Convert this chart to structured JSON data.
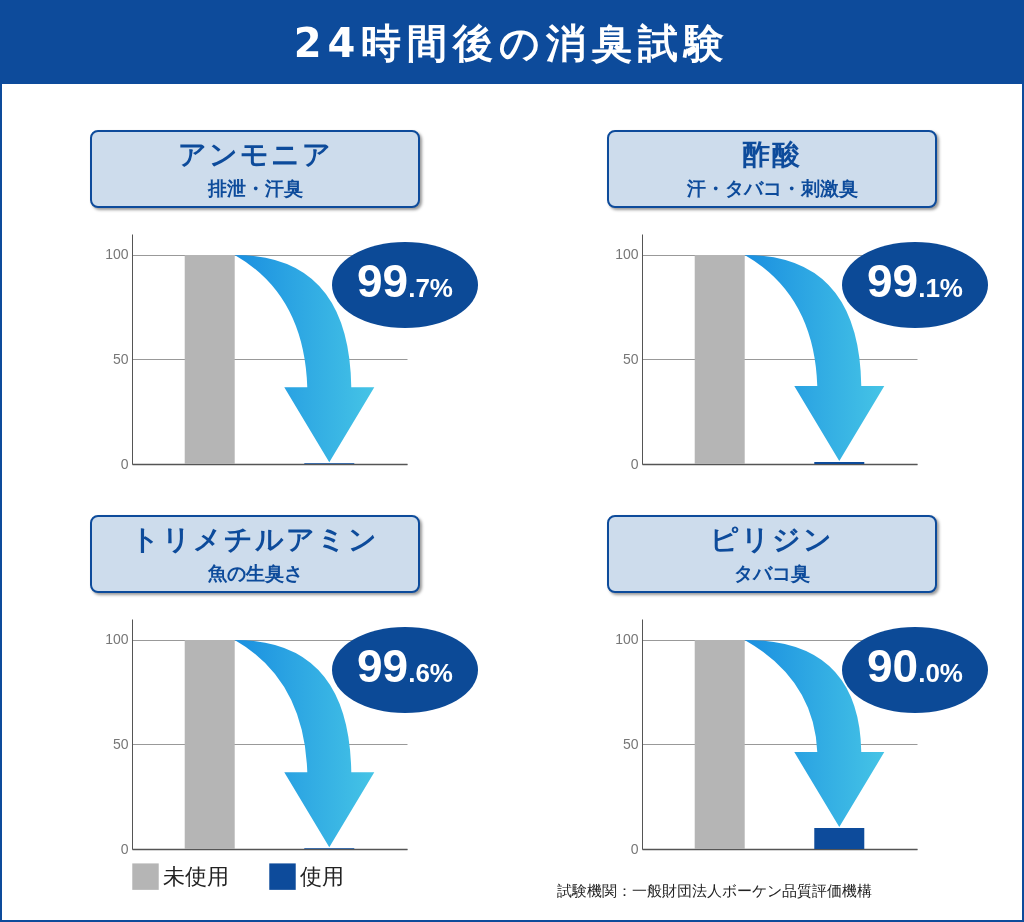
{
  "chart_data": [
    {
      "type": "other",
      "title": "24時間後の消臭試験"
    },
    {
      "type": "bar",
      "title": "アンモニア",
      "subtitle": "排泄・汗臭",
      "categories": [
        null,
        null
      ],
      "series": [
        {
          "color": "#b5b5b5",
          "values": [
            100,
            null
          ]
        },
        {
          "color": "#0d4b9b",
          "values": [
            null,
            0.3
          ]
        }
      ],
      "ylim": [
        0,
        110
      ],
      "yticks": [
        0,
        50,
        100
      ],
      "grid": "y",
      "tick_labels": "y",
      "annotations": [
        "99.7%"
      ]
    },
    {
      "type": "bar",
      "title": "酢酸",
      "subtitle": "汗・タバコ・刺激臭",
      "categories": [
        null,
        null
      ],
      "series": [
        {
          "color": "#b5b5b5",
          "values": [
            100,
            null
          ]
        },
        {
          "color": "#0d4b9b",
          "values": [
            null,
            0.9
          ]
        }
      ],
      "ylim": [
        0,
        110
      ],
      "yticks": [
        0,
        50,
        100
      ],
      "grid": "y",
      "tick_labels": "y",
      "annotations": [
        "99.1%"
      ]
    },
    {
      "type": "bar",
      "title": "トリメチルアミン",
      "subtitle": "魚の生臭さ",
      "categories": [
        null,
        null
      ],
      "series": [
        {
          "name": "未使用",
          "color": "#b5b5b5",
          "values": [
            100,
            null
          ]
        },
        {
          "name": "使用",
          "color": "#0d4b9b",
          "values": [
            null,
            0.4
          ]
        }
      ],
      "ylim": [
        0,
        110
      ],
      "yticks": [
        0,
        50,
        100
      ],
      "grid": "y",
      "tick_labels": "y",
      "legend": "bottom",
      "annotations": [
        "99.6%"
      ]
    },
    {
      "type": "bar",
      "title": "ピリジン",
      "subtitle": "タバコ臭",
      "categories": [
        null,
        null
      ],
      "series": [
        {
          "color": "#b5b5b5",
          "values": [
            100,
            null
          ]
        },
        {
          "color": "#0d4b9b",
          "values": [
            null,
            10
          ]
        }
      ],
      "ylim": [
        0,
        110
      ],
      "yticks": [
        0,
        50,
        100
      ],
      "grid": "y",
      "tick_labels": "y",
      "annotations": [
        "90.0%",
        "試験機関：一般財団法人ボーケン品質評価機構"
      ]
    }
  ]
}
